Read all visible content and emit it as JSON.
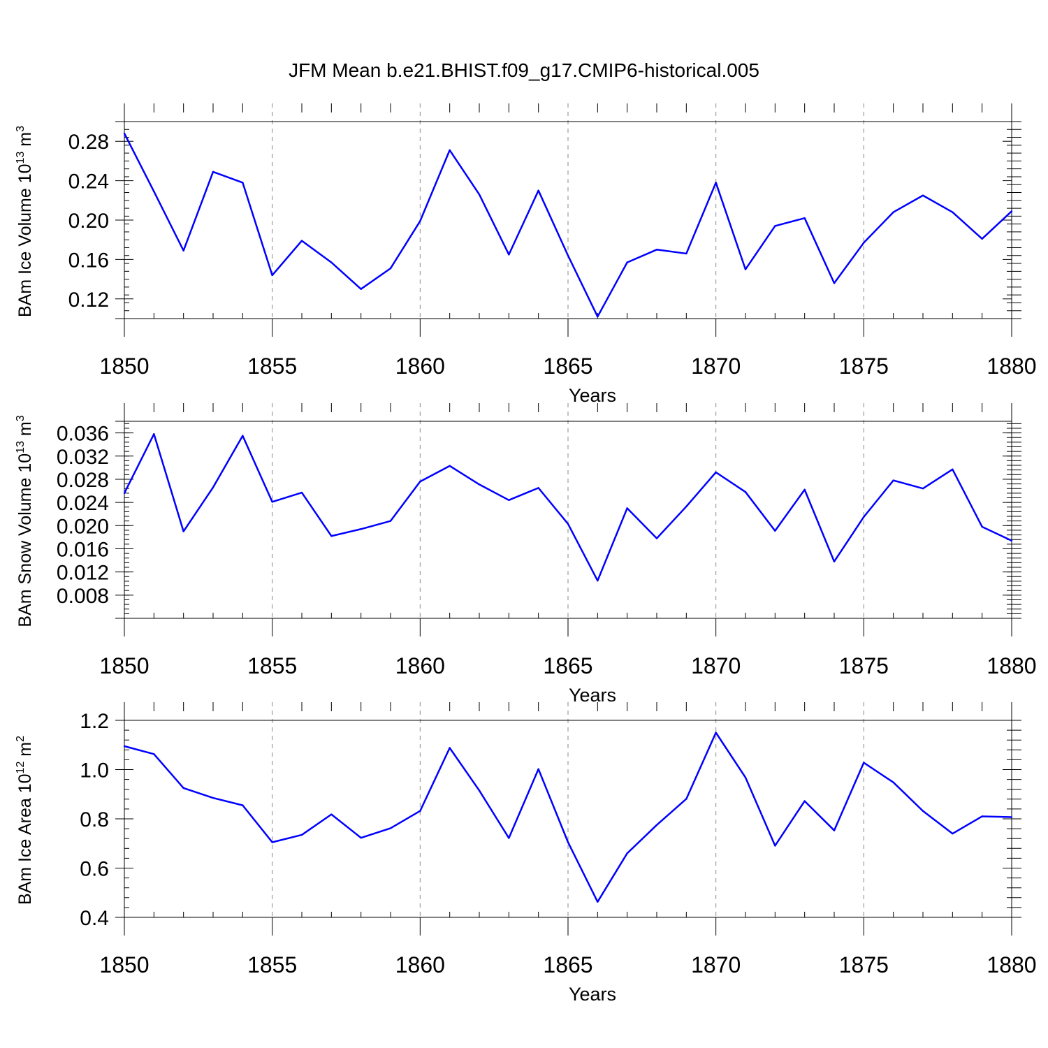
{
  "figure_title": "JFM Mean b.e21.BHIST.f09_g17.CMIP6-historical.005",
  "colors": {
    "series": "#0000ff",
    "axis": "#000000",
    "grid": "#888888"
  },
  "chart_data": [
    {
      "type": "line",
      "title": "JFM Mean b.e21.BHIST.f09_g17.CMIP6-historical.005",
      "ylabel": {
        "text": "BAm Ice Volume 10",
        "sup": "13",
        "unit": " m",
        "unit_sup": "3"
      },
      "xlabel": "Years",
      "xlim": [
        1850,
        1880
      ],
      "ylim": [
        0.1,
        0.3
      ],
      "xticks": [
        1850,
        1855,
        1860,
        1865,
        1870,
        1875,
        1880
      ],
      "yticks": [
        0.12,
        0.16,
        0.2,
        0.24,
        0.28
      ],
      "ytick_labels": [
        "0.12",
        "0.16",
        "0.20",
        "0.24",
        "0.28"
      ],
      "x": [
        1850,
        1851,
        1852,
        1853,
        1854,
        1855,
        1856,
        1857,
        1858,
        1859,
        1860,
        1861,
        1862,
        1863,
        1864,
        1865,
        1866,
        1867,
        1868,
        1869,
        1870,
        1871,
        1872,
        1873,
        1874,
        1875,
        1876,
        1877,
        1878,
        1879,
        1880
      ],
      "series": [
        {
          "name": "BAm Ice Volume",
          "values": [
            0.288,
            0.229,
            0.169,
            0.249,
            0.238,
            0.144,
            0.179,
            0.157,
            0.13,
            0.151,
            0.199,
            0.271,
            0.226,
            0.165,
            0.23,
            0.164,
            0.102,
            0.157,
            0.17,
            0.166,
            0.238,
            0.15,
            0.194,
            0.202,
            0.136,
            0.177,
            0.208,
            0.225,
            0.208,
            0.181,
            0.209
          ]
        }
      ]
    },
    {
      "type": "line",
      "ylabel": {
        "text": "BAm Snow Volume 10",
        "sup": "13",
        "unit": " m",
        "unit_sup": "3"
      },
      "xlabel": "Years",
      "xlim": [
        1850,
        1880
      ],
      "ylim": [
        0.004,
        0.038
      ],
      "xticks": [
        1850,
        1855,
        1860,
        1865,
        1870,
        1875,
        1880
      ],
      "yticks": [
        0.008,
        0.012,
        0.016,
        0.02,
        0.024,
        0.028,
        0.032,
        0.036
      ],
      "ytick_labels": [
        "0.008",
        "0.012",
        "0.016",
        "0.020",
        "0.024",
        "0.028",
        "0.032",
        "0.036"
      ],
      "x": [
        1850,
        1851,
        1852,
        1853,
        1854,
        1855,
        1856,
        1857,
        1858,
        1859,
        1860,
        1861,
        1862,
        1863,
        1864,
        1865,
        1866,
        1867,
        1868,
        1869,
        1870,
        1871,
        1872,
        1873,
        1874,
        1875,
        1876,
        1877,
        1878,
        1879,
        1880
      ],
      "series": [
        {
          "name": "BAm Snow Volume",
          "values": [
            0.0256,
            0.0358,
            0.019,
            0.0266,
            0.0355,
            0.0241,
            0.0257,
            0.0182,
            0.0194,
            0.0208,
            0.0276,
            0.0303,
            0.0271,
            0.0244,
            0.0265,
            0.0203,
            0.0105,
            0.023,
            0.0178,
            0.0233,
            0.0292,
            0.0258,
            0.0191,
            0.0262,
            0.0138,
            0.0215,
            0.0278,
            0.0264,
            0.0297,
            0.0198,
            0.0174
          ]
        }
      ]
    },
    {
      "type": "line",
      "ylabel": {
        "text": "BAm Ice Area 10",
        "sup": "12",
        "unit": " m",
        "unit_sup": "2"
      },
      "xlabel": "Years",
      "xlim": [
        1850,
        1880
      ],
      "ylim": [
        0.4,
        1.2
      ],
      "xticks": [
        1850,
        1855,
        1860,
        1865,
        1870,
        1875,
        1880
      ],
      "yticks": [
        0.4,
        0.6,
        0.8,
        1.0,
        1.2
      ],
      "ytick_labels": [
        "0.4",
        "0.6",
        "0.8",
        "1.0",
        "1.2"
      ],
      "x": [
        1850,
        1851,
        1852,
        1853,
        1854,
        1855,
        1856,
        1857,
        1858,
        1859,
        1860,
        1861,
        1862,
        1863,
        1864,
        1865,
        1866,
        1867,
        1868,
        1869,
        1870,
        1871,
        1872,
        1873,
        1874,
        1875,
        1876,
        1877,
        1878,
        1879,
        1880
      ],
      "series": [
        {
          "name": "BAm Ice Area",
          "values": [
            1.095,
            1.063,
            0.925,
            0.885,
            0.855,
            0.705,
            0.735,
            0.818,
            0.723,
            0.762,
            0.832,
            1.088,
            0.915,
            0.722,
            1.002,
            0.705,
            0.463,
            0.66,
            0.775,
            0.881,
            1.15,
            0.968,
            0.691,
            0.872,
            0.753,
            1.028,
            0.948,
            0.832,
            0.74,
            0.81,
            0.807
          ]
        }
      ]
    }
  ]
}
